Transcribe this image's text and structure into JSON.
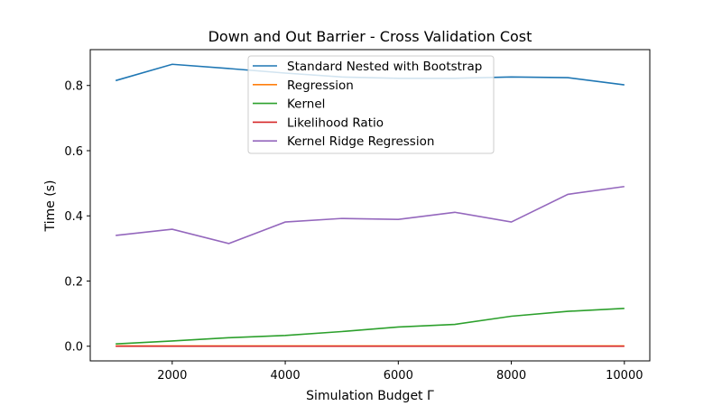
{
  "chart_data": {
    "type": "line",
    "title": "Down and Out Barrier - Cross Validation Cost",
    "xlabel": "Simulation Budget Γ",
    "ylabel": "Time (s)",
    "xlim": [
      550,
      10450
    ],
    "ylim": [
      -0.045,
      0.91
    ],
    "x_ticks": [
      2000,
      4000,
      6000,
      8000,
      10000
    ],
    "x_tick_labels": [
      "2000",
      "4000",
      "6000",
      "8000",
      "10000"
    ],
    "y_ticks": [
      0.0,
      0.2,
      0.4,
      0.6,
      0.8
    ],
    "y_tick_labels": [
      "0.0",
      "0.2",
      "0.4",
      "0.6",
      "0.8"
    ],
    "grid": false,
    "legend_position": "top-center",
    "x": [
      1000,
      2000,
      3000,
      4000,
      5000,
      6000,
      7000,
      8000,
      9000,
      10000
    ],
    "series": [
      {
        "name": "Standard Nested with Bootstrap",
        "color": "#1f77b4",
        "values": [
          0.815,
          0.865,
          0.852,
          0.838,
          0.826,
          0.822,
          0.822,
          0.826,
          0.824,
          0.802
        ]
      },
      {
        "name": "Regression",
        "color": "#ff7f0e",
        "values": [
          0.001,
          0.001,
          0.001,
          0.001,
          0.001,
          0.001,
          0.001,
          0.001,
          0.001,
          0.001
        ]
      },
      {
        "name": "Kernel",
        "color": "#2ca02c",
        "values": [
          0.007,
          0.016,
          0.026,
          0.033,
          0.045,
          0.059,
          0.067,
          0.092,
          0.107,
          0.116
        ]
      },
      {
        "name": "Likelihood Ratio",
        "color": "#d62728",
        "values": [
          0.0,
          0.0,
          0.0,
          0.0,
          0.0,
          0.0,
          0.0,
          0.0,
          0.0,
          0.0
        ]
      },
      {
        "name": "Kernel Ridge Regression",
        "color": "#9467bd",
        "values": [
          0.34,
          0.359,
          0.315,
          0.381,
          0.392,
          0.389,
          0.411,
          0.381,
          0.466,
          0.49
        ]
      }
    ]
  }
}
